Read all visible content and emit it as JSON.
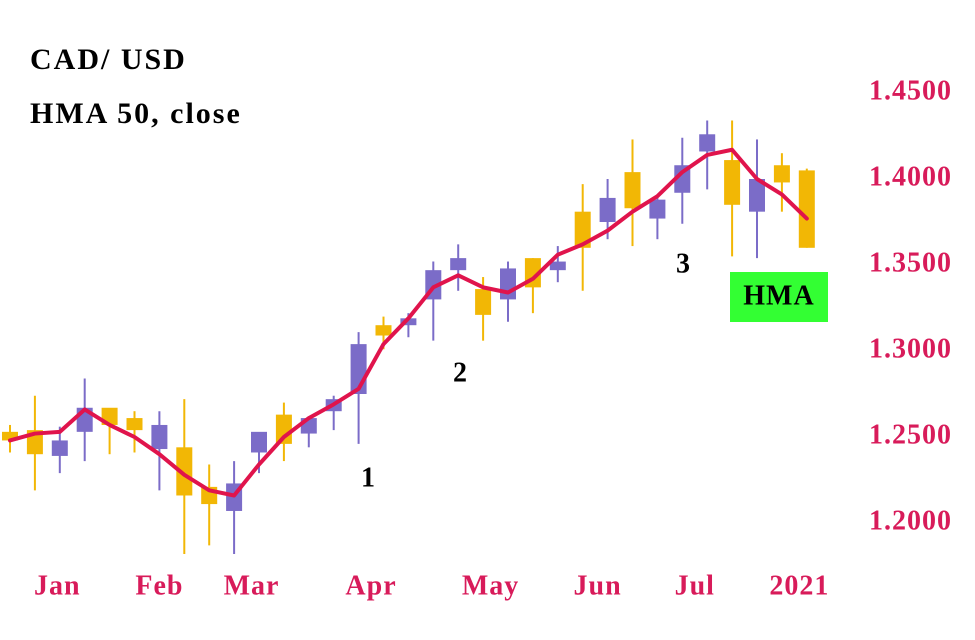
{
  "chart_data": {
    "type": "candlestick",
    "title": "CAD/ USD",
    "subtitle": "HMA 50, close",
    "categories": [
      null,
      null,
      null,
      null,
      null,
      null,
      null,
      null,
      null,
      null,
      null,
      null,
      null,
      null,
      null,
      null,
      null,
      null,
      null,
      null,
      null,
      null,
      null,
      null,
      null,
      null,
      null,
      null,
      null,
      null,
      null,
      null,
      null
    ],
    "open": [
      1.253,
      1.254,
      1.239,
      1.253,
      1.267,
      1.261,
      1.243,
      1.244,
      1.221,
      1.207,
      1.241,
      1.263,
      1.252,
      1.265,
      1.275,
      1.315,
      1.315,
      1.33,
      1.347,
      1.336,
      1.33,
      1.354,
      1.347,
      1.381,
      1.375,
      1.404,
      1.377,
      1.392,
      1.416,
      1.411,
      1.381,
      1.408,
      1.405
    ],
    "high": [
      1.257,
      1.274,
      1.256,
      1.284,
      1.265,
      1.265,
      1.265,
      1.272,
      1.234,
      1.236,
      1.252,
      1.27,
      1.262,
      1.274,
      1.311,
      1.32,
      1.322,
      1.352,
      1.362,
      1.343,
      1.352,
      1.354,
      1.361,
      1.397,
      1.4,
      1.423,
      1.391,
      1.424,
      1.434,
      1.434,
      1.423,
      1.415,
      1.406
    ],
    "low": [
      1.241,
      1.219,
      1.229,
      1.236,
      1.24,
      1.241,
      1.219,
      1.182,
      1.187,
      1.182,
      1.229,
      1.236,
      1.244,
      1.254,
      1.246,
      1.301,
      1.308,
      1.306,
      1.335,
      1.306,
      1.317,
      1.322,
      1.34,
      1.335,
      1.365,
      1.361,
      1.365,
      1.374,
      1.394,
      1.355,
      1.354,
      1.381,
      1.36
    ],
    "close": [
      1.248,
      1.24,
      1.248,
      1.267,
      1.257,
      1.254,
      1.257,
      1.216,
      1.211,
      1.223,
      1.253,
      1.246,
      1.261,
      1.272,
      1.304,
      1.309,
      1.319,
      1.347,
      1.354,
      1.321,
      1.348,
      1.337,
      1.352,
      1.36,
      1.389,
      1.383,
      1.388,
      1.408,
      1.426,
      1.385,
      1.4,
      1.398,
      1.36
    ],
    "up_color": "#7b6cc8",
    "down_color": "#f2b705",
    "series": [
      {
        "name": "HMA",
        "color": "#e0144c",
        "values": [
          1.248,
          1.252,
          1.253,
          1.266,
          1.257,
          1.25,
          1.24,
          1.228,
          1.219,
          1.216,
          1.234,
          1.25,
          1.261,
          1.269,
          1.278,
          1.304,
          1.319,
          1.337,
          1.344,
          1.337,
          1.334,
          1.342,
          1.356,
          1.362,
          1.37,
          1.381,
          1.39,
          1.404,
          1.414,
          1.417,
          1.4,
          1.391,
          1.377
        ]
      }
    ],
    "annotations": [
      "1",
      "2",
      "3"
    ],
    "ylim": [
      1.18,
      1.47
    ],
    "yticks": [
      {
        "value": 1.2,
        "label": "1.2000"
      },
      {
        "value": 1.25,
        "label": "1.2500"
      },
      {
        "value": 1.3,
        "label": "1.3000"
      },
      {
        "value": 1.35,
        "label": "1.3500"
      },
      {
        "value": 1.4,
        "label": "1.4000"
      },
      {
        "value": 1.45,
        "label": "1.4500"
      }
    ],
    "xticks": [
      {
        "value": 1.9,
        "label": "Jan"
      },
      {
        "value": 6.0,
        "label": "Feb"
      },
      {
        "value": 9.7,
        "label": "Mar"
      },
      {
        "value": 14.5,
        "label": "Apr"
      },
      {
        "value": 19.3,
        "label": "May"
      },
      {
        "value": 23.6,
        "label": "Jun"
      },
      {
        "value": 27.5,
        "label": "Jul"
      },
      {
        "value": 31.7,
        "label": "2021"
      }
    ],
    "label_color": "#d81b5a"
  }
}
